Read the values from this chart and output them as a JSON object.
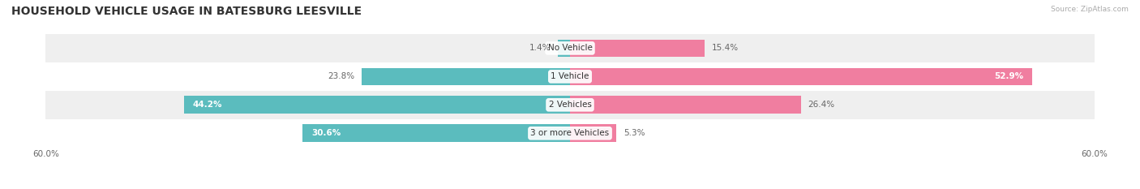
{
  "title": "HOUSEHOLD VEHICLE USAGE IN BATESBURG LEESVILLE",
  "source": "Source: ZipAtlas.com",
  "categories": [
    "No Vehicle",
    "1 Vehicle",
    "2 Vehicles",
    "3 or more Vehicles"
  ],
  "owner_values": [
    1.4,
    23.8,
    44.2,
    30.6
  ],
  "renter_values": [
    15.4,
    52.9,
    26.4,
    5.3
  ],
  "owner_color": "#5bbcbe",
  "renter_color": "#f07ea0",
  "row_colors": [
    "#efefef",
    "#ffffff",
    "#efefef",
    "#ffffff"
  ],
  "xlim": [
    -60,
    60
  ],
  "bar_height": 0.62,
  "title_fontsize": 10,
  "label_fontsize": 7.5,
  "tick_fontsize": 7.5,
  "legend_fontsize": 7.5,
  "figsize": [
    14.06,
    2.33
  ],
  "dpi": 100
}
